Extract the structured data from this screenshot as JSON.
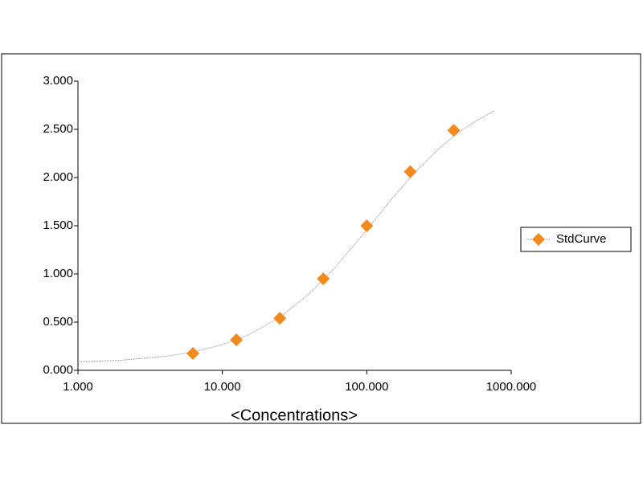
{
  "chart_data": {
    "type": "scatter",
    "x_label": "<Concentrations>",
    "xscale": "log",
    "xlim": [
      1,
      1000
    ],
    "xticks": [
      {
        "value": 1,
        "label": "1.000"
      },
      {
        "value": 10,
        "label": "10.000"
      },
      {
        "value": 100,
        "label": "100.000"
      },
      {
        "value": 1000,
        "label": "1000.000"
      }
    ],
    "ylim": [
      0,
      3
    ],
    "yticks": [
      {
        "value": 0,
        "label": "0.000"
      },
      {
        "value": 0.5,
        "label": "0.500"
      },
      {
        "value": 1,
        "label": "1.000"
      },
      {
        "value": 1.5,
        "label": "1.500"
      },
      {
        "value": 2,
        "label": "2.000"
      },
      {
        "value": 2.5,
        "label": "2.500"
      },
      {
        "value": 3,
        "label": "3.000"
      }
    ],
    "legend": "right",
    "series": [
      {
        "name": "StdCurve",
        "color": "#f28a1e",
        "x": [
          6.25,
          12.5,
          25,
          50,
          100,
          200,
          400
        ],
        "values": [
          0.175,
          0.317,
          0.54,
          0.95,
          1.5,
          2.06,
          2.49
        ]
      }
    ],
    "trendline": {
      "color": "#888888",
      "x": [
        1,
        2,
        4,
        6.25,
        10,
        15,
        25,
        40,
        60,
        100,
        150,
        200,
        300,
        400,
        550,
        760
      ],
      "values": [
        0.087,
        0.105,
        0.145,
        0.19,
        0.266,
        0.364,
        0.55,
        0.795,
        1.063,
        1.458,
        1.783,
        2.0,
        2.27,
        2.43,
        2.574,
        2.69
      ]
    }
  }
}
